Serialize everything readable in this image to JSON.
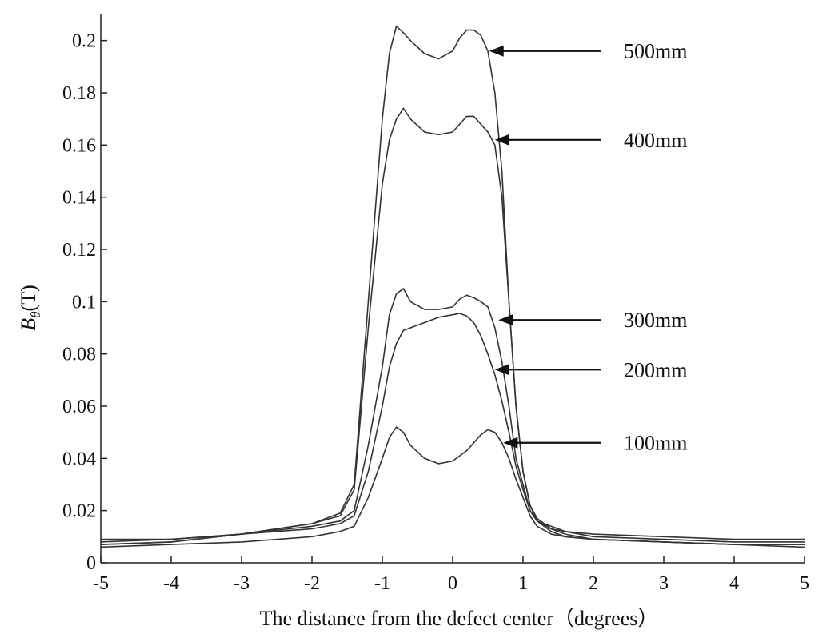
{
  "chart_data": {
    "type": "line",
    "xlabel": "The distance from the defect center（degrees）",
    "ylabel": "Bθ(T)",
    "ylabel_main": "B",
    "ylabel_sub": "θ",
    "ylabel_unit": "(T)",
    "xlim": [
      -5,
      5
    ],
    "ylim": [
      0,
      0.21
    ],
    "xticks": [
      -5,
      -4,
      -3,
      -2,
      -1,
      0,
      1,
      2,
      3,
      4,
      5
    ],
    "xtick_labels": [
      "-5",
      "-4",
      "-3",
      "-2",
      "-1",
      "0",
      "1",
      "2",
      "3",
      "4",
      "5"
    ],
    "yticks": [
      0,
      0.02,
      0.04,
      0.06,
      0.08,
      0.1,
      0.12,
      0.14,
      0.16,
      0.18,
      0.2
    ],
    "ytick_labels": [
      "0",
      "0.02",
      "0.04",
      "0.06",
      "0.08",
      "0.1",
      "0.12",
      "0.14",
      "0.16",
      "0.18",
      "0.2"
    ],
    "grid": false,
    "series": [
      {
        "name": "500mm",
        "label_at": [
          0.52,
          0.196
        ],
        "x": [
          -5,
          -4,
          -3,
          -2,
          -1.6,
          -1.4,
          -1.2,
          -1.0,
          -0.9,
          -0.8,
          -0.7,
          -0.6,
          -0.4,
          -0.2,
          0,
          0.1,
          0.2,
          0.3,
          0.4,
          0.5,
          0.6,
          0.7,
          0.8,
          0.9,
          1.0,
          1.1,
          1.2,
          1.4,
          1.6,
          2,
          3,
          4,
          5
        ],
        "y": [
          0.007,
          0.008,
          0.011,
          0.015,
          0.019,
          0.03,
          0.1,
          0.17,
          0.195,
          0.2055,
          0.203,
          0.2,
          0.195,
          0.193,
          0.196,
          0.201,
          0.204,
          0.204,
          0.202,
          0.196,
          0.18,
          0.15,
          0.1,
          0.06,
          0.035,
          0.022,
          0.017,
          0.013,
          0.011,
          0.009,
          0.008,
          0.007,
          0.007
        ]
      },
      {
        "name": "400mm",
        "label_at": [
          0.6,
          0.162
        ],
        "x": [
          -5,
          -4,
          -3,
          -2,
          -1.6,
          -1.4,
          -1.2,
          -1.0,
          -0.9,
          -0.8,
          -0.7,
          -0.6,
          -0.4,
          -0.2,
          0,
          0.1,
          0.2,
          0.3,
          0.4,
          0.5,
          0.6,
          0.7,
          0.8,
          0.9,
          1.0,
          1.1,
          1.2,
          1.4,
          1.6,
          2,
          3,
          4,
          5
        ],
        "y": [
          0.007,
          0.008,
          0.011,
          0.015,
          0.018,
          0.028,
          0.09,
          0.145,
          0.162,
          0.17,
          0.174,
          0.17,
          0.165,
          0.164,
          0.165,
          0.168,
          0.171,
          0.171,
          0.168,
          0.165,
          0.16,
          0.14,
          0.1,
          0.06,
          0.035,
          0.022,
          0.016,
          0.012,
          0.01,
          0.009,
          0.008,
          0.007,
          0.007
        ]
      },
      {
        "name": "300mm",
        "label_at": [
          0.65,
          0.093
        ],
        "x": [
          -5,
          -4,
          -3,
          -2,
          -1.6,
          -1.4,
          -1.2,
          -1.0,
          -0.9,
          -0.8,
          -0.7,
          -0.6,
          -0.4,
          -0.2,
          0,
          0.1,
          0.2,
          0.3,
          0.4,
          0.5,
          0.6,
          0.7,
          0.8,
          0.9,
          1.0,
          1.1,
          1.2,
          1.4,
          1.6,
          2,
          3,
          4,
          5
        ],
        "y": [
          0.009,
          0.009,
          0.011,
          0.014,
          0.016,
          0.02,
          0.045,
          0.075,
          0.095,
          0.103,
          0.105,
          0.1,
          0.097,
          0.097,
          0.098,
          0.101,
          0.1025,
          0.1015,
          0.1,
          0.098,
          0.09,
          0.077,
          0.06,
          0.04,
          0.03,
          0.02,
          0.016,
          0.014,
          0.012,
          0.011,
          0.01,
          0.009,
          0.009
        ]
      },
      {
        "name": "200mm",
        "label_at": [
          0.6,
          0.074
        ],
        "x": [
          -5,
          -4,
          -3,
          -2,
          -1.6,
          -1.4,
          -1.2,
          -1.0,
          -0.9,
          -0.8,
          -0.7,
          -0.6,
          -0.4,
          -0.2,
          0,
          0.1,
          0.2,
          0.3,
          0.4,
          0.5,
          0.6,
          0.7,
          0.8,
          0.9,
          1.0,
          1.1,
          1.2,
          1.4,
          1.6,
          2,
          3,
          4,
          5
        ],
        "y": [
          0.008,
          0.009,
          0.011,
          0.013,
          0.015,
          0.018,
          0.035,
          0.06,
          0.075,
          0.084,
          0.089,
          0.09,
          0.092,
          0.094,
          0.095,
          0.0955,
          0.0945,
          0.092,
          0.087,
          0.08,
          0.072,
          0.062,
          0.05,
          0.037,
          0.028,
          0.02,
          0.016,
          0.013,
          0.012,
          0.01,
          0.009,
          0.008,
          0.008
        ]
      },
      {
        "name": "100mm",
        "label_at": [
          0.72,
          0.046
        ],
        "x": [
          -5,
          -4,
          -3,
          -2,
          -1.6,
          -1.4,
          -1.2,
          -1.0,
          -0.9,
          -0.8,
          -0.7,
          -0.6,
          -0.4,
          -0.2,
          0,
          0.1,
          0.2,
          0.3,
          0.4,
          0.5,
          0.6,
          0.7,
          0.8,
          0.9,
          1.0,
          1.1,
          1.2,
          1.4,
          1.6,
          2,
          3,
          4,
          5
        ],
        "y": [
          0.006,
          0.007,
          0.008,
          0.01,
          0.012,
          0.014,
          0.025,
          0.04,
          0.048,
          0.052,
          0.05,
          0.045,
          0.04,
          0.038,
          0.039,
          0.041,
          0.043,
          0.046,
          0.049,
          0.051,
          0.05,
          0.046,
          0.04,
          0.032,
          0.025,
          0.018,
          0.014,
          0.011,
          0.01,
          0.009,
          0.008,
          0.007,
          0.006
        ]
      }
    ]
  }
}
